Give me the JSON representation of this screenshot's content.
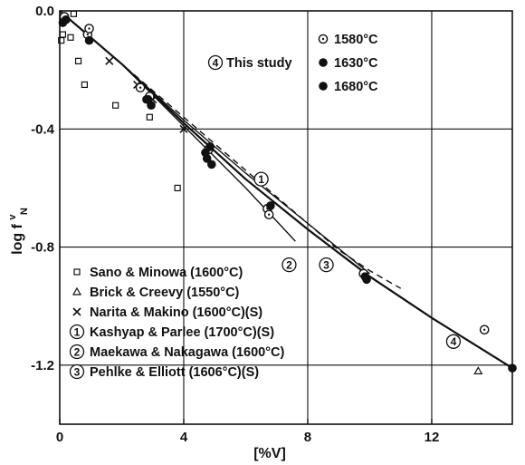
{
  "chart_data": {
    "type": "scatter",
    "xlabel": "[%V]",
    "ylabel": "log f",
    "ylabel_super": "v",
    "ylabel_sub": "N",
    "xlim": [
      0,
      14.6
    ],
    "ylim": [
      -1.4,
      0.0
    ],
    "x_ticks": [
      0,
      4,
      8,
      12
    ],
    "y_ticks": [
      0.0,
      -0.4,
      -0.8,
      -1.2
    ],
    "x_tick_labels": [
      "0",
      "4",
      "8",
      "12"
    ],
    "y_tick_labels": [
      "0.0",
      "-0.4",
      "-0.8",
      "-1.2"
    ],
    "grid": true,
    "study_label": "This study",
    "study_marker": "4",
    "study_series": [
      {
        "name": "1580°C",
        "marker": "circle-dot",
        "points": [
          [
            0.15,
            -0.02
          ],
          [
            0.9,
            -0.08
          ],
          [
            0.95,
            -0.06
          ],
          [
            2.6,
            -0.26
          ],
          [
            2.9,
            -0.29
          ],
          [
            4.8,
            -0.47
          ],
          [
            6.7,
            -0.67
          ],
          [
            6.75,
            -0.69
          ],
          [
            9.8,
            -0.89
          ],
          [
            13.7,
            -1.08
          ]
        ]
      },
      {
        "name": "1630°C",
        "marker": "filled-circle",
        "points": [
          [
            0.1,
            -0.04
          ],
          [
            0.95,
            -0.1
          ],
          [
            2.85,
            -0.3
          ],
          [
            4.75,
            -0.5
          ],
          [
            4.9,
            -0.52
          ],
          [
            6.8,
            -0.66
          ],
          [
            9.85,
            -0.9
          ]
        ]
      },
      {
        "name": "1680°C",
        "marker": "filled-circle",
        "points": [
          [
            0.2,
            -0.03
          ],
          [
            2.8,
            -0.3
          ],
          [
            2.95,
            -0.32
          ],
          [
            4.7,
            -0.48
          ],
          [
            4.85,
            -0.46
          ],
          [
            9.9,
            -0.91
          ],
          [
            14.6,
            -1.21
          ]
        ]
      }
    ],
    "literature_series": [
      {
        "name": "Sano & Minowa (1600°C)",
        "marker": "square",
        "points": [
          [
            0.05,
            -0.1
          ],
          [
            0.1,
            -0.08
          ],
          [
            0.35,
            -0.09
          ],
          [
            0.45,
            -0.01
          ],
          [
            0.6,
            -0.17
          ],
          [
            0.8,
            -0.25
          ],
          [
            1.8,
            -0.32
          ],
          [
            2.9,
            -0.36
          ],
          [
            3.8,
            -0.6
          ]
        ]
      },
      {
        "name": "Brick & Creevy (1550°C)",
        "marker": "triangle",
        "points": [
          [
            13.5,
            -1.22
          ]
        ]
      },
      {
        "name": "Narita & Makino (1600°C)(S)",
        "marker": "cross",
        "points": [
          [
            1.6,
            -0.17
          ],
          [
            2.5,
            -0.25
          ],
          [
            3.0,
            -0.3
          ],
          [
            4.0,
            -0.4
          ]
        ]
      }
    ],
    "lines": [
      {
        "name": "Kashyap & Parlee (1700°C)(S)",
        "marker": "1",
        "style": "dashed",
        "points": [
          [
            0,
            0
          ],
          [
            1,
            -0.09
          ],
          [
            2,
            -0.18
          ],
          [
            3,
            -0.27
          ],
          [
            4,
            -0.36
          ],
          [
            5,
            -0.45
          ],
          [
            6,
            -0.54
          ],
          [
            7,
            -0.63
          ],
          [
            8,
            -0.72
          ],
          [
            9,
            -0.81
          ],
          [
            10,
            -0.88
          ],
          [
            11,
            -0.94
          ]
        ]
      },
      {
        "name": "Maekawa & Nakagawa (1600°C)",
        "marker": "2",
        "style": "solid",
        "points": [
          [
            0,
            0
          ],
          [
            2,
            -0.18
          ],
          [
            4,
            -0.39
          ],
          [
            6,
            -0.6
          ],
          [
            7.6,
            -0.78
          ]
        ]
      },
      {
        "name": "Pehlke & Elliott (1606°C)(S)",
        "marker": "3",
        "style": "solid",
        "points": [
          [
            0,
            0
          ],
          [
            2,
            -0.18
          ],
          [
            4,
            -0.37
          ],
          [
            6,
            -0.55
          ],
          [
            8,
            -0.72
          ],
          [
            10,
            -0.89
          ]
        ]
      },
      {
        "name": "This study",
        "marker": "4",
        "style": "solid",
        "points": [
          [
            0,
            0
          ],
          [
            2,
            -0.18
          ],
          [
            4,
            -0.38
          ],
          [
            6,
            -0.57
          ],
          [
            8,
            -0.74
          ],
          [
            10,
            -0.9
          ],
          [
            12,
            -1.04
          ],
          [
            14.6,
            -1.21
          ]
        ]
      }
    ],
    "curve_labels": [
      {
        "marker": "1",
        "x": 6.5,
        "y": -0.57
      },
      {
        "marker": "2",
        "x": 7.4,
        "y": -0.86
      },
      {
        "marker": "3",
        "x": 8.6,
        "y": -0.86
      },
      {
        "marker": "4",
        "x": 12.7,
        "y": -1.12
      }
    ]
  },
  "legend": {
    "entries": [
      {
        "symbol": "square",
        "text": "Sano & Minowa (1600°C)"
      },
      {
        "symbol": "triangle",
        "text": "Brick & Creevy (1550°C)"
      },
      {
        "symbol": "cross",
        "text": "Narita & Makino (1600°C)(S)"
      },
      {
        "symbol": "1",
        "text": "Kashyap & Parlee (1700°C)(S)"
      },
      {
        "symbol": "2",
        "text": "Maekawa & Nakagawa (1600°C)"
      },
      {
        "symbol": "3",
        "text": "Pehlke & Elliott (1606°C)(S)"
      }
    ]
  },
  "colors": {
    "ink": "#111111",
    "background": "#ffffff"
  }
}
